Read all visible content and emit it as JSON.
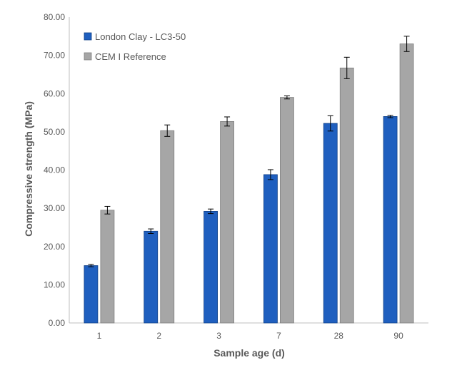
{
  "chart_data": {
    "type": "bar",
    "title": "",
    "xlabel": "Sample age (d)",
    "ylabel": "Compressive strength (MPa)",
    "categories": [
      "1",
      "2",
      "3",
      "7",
      "28",
      "90"
    ],
    "ylim": [
      0,
      80
    ],
    "y_ticks": [
      "0.00",
      "10.00",
      "20.00",
      "30.00",
      "40.00",
      "50.00",
      "60.00",
      "70.00",
      "80.00"
    ],
    "grid": false,
    "legend_position": "top-left",
    "series": [
      {
        "name": "London Clay - LC3-50",
        "color": "#1f5fbf",
        "values": [
          15.0,
          24.0,
          29.2,
          38.8,
          52.2,
          54.0
        ],
        "errors": [
          0.3,
          0.6,
          0.6,
          1.3,
          2.0,
          0.3
        ]
      },
      {
        "name": "CEM I Reference",
        "color": "#a6a6a6",
        "values": [
          29.5,
          50.3,
          52.7,
          59.0,
          66.7,
          73.0
        ],
        "errors": [
          1.0,
          1.5,
          1.2,
          0.4,
          2.8,
          2.0
        ]
      }
    ]
  }
}
